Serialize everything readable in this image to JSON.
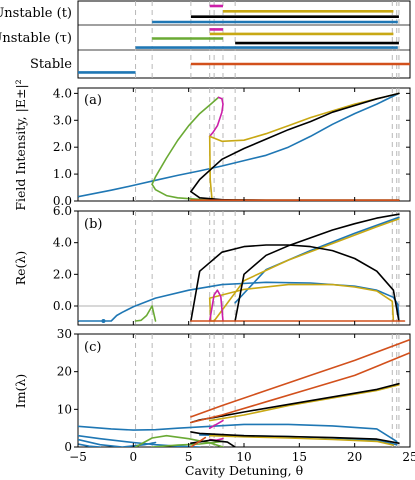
{
  "chart_data": {
    "type": "line",
    "x_tick_labels": [
      "−5",
      "0",
      "5",
      "10",
      "15",
      "20",
      "25"
    ],
    "xlabel": "Cavity Detuning, θ",
    "xlim": [
      -5,
      25
    ],
    "dashed_vlines_x": [
      0.2,
      1.7,
      5.2,
      6.9,
      7.3,
      8.1,
      9.2,
      23.4,
      23.8,
      24.0
    ],
    "colors": {
      "blue": "#1f77b4",
      "green": "#6aaa34",
      "yellow": "#c8a814",
      "black": "#000000",
      "orange": "#d2501c",
      "magenta": "#cc1fa9"
    },
    "stability": {
      "labels": [
        "Unstable (t)",
        "Unstable (τ)",
        "Stable"
      ],
      "bars": [
        {
          "row": "Unstable (t)",
          "color": "magenta",
          "from": 6.9,
          "to": 8.1
        },
        {
          "row": "Unstable (t)",
          "color": "yellow",
          "from": 8.1,
          "to": 23.5
        },
        {
          "row": "Unstable (t)",
          "color": "black",
          "from": 5.2,
          "to": 24.0
        },
        {
          "row": "Unstable (t)",
          "color": "blue",
          "from": 1.7,
          "to": 23.9
        },
        {
          "row": "Unstable (τ)",
          "color": "magenta",
          "from": 6.9,
          "to": 8.1
        },
        {
          "row": "Unstable (τ)",
          "color": "yellow",
          "from": 6.9,
          "to": 23.5
        },
        {
          "row": "Unstable (τ)",
          "color": "green",
          "from": 1.7,
          "to": 8.1
        },
        {
          "row": "Unstable (τ)",
          "color": "black",
          "from": 9.2,
          "to": 24.0
        },
        {
          "row": "Unstable (τ)",
          "color": "blue",
          "from": 0.2,
          "to": 23.9
        },
        {
          "row": "Stable",
          "color": "blue",
          "from": -5,
          "to": 0.2
        },
        {
          "row": "Stable",
          "color": "orange",
          "from": 5.2,
          "to": 25
        }
      ]
    },
    "panels": [
      {
        "label": "(a)",
        "ylabel": "Field Intensity, |E±|²",
        "ylim": [
          0,
          4.2
        ],
        "y_ticks": [
          0,
          1,
          2,
          3,
          4
        ],
        "y_tick_labels": [
          "0.0",
          "1.0",
          "2.0",
          "3.0",
          "4.0"
        ],
        "series": [
          {
            "color": "blue",
            "x": [
              -5,
              -2,
              0,
              2,
              4,
              6,
              8,
              10,
              12,
              14,
              16,
              18,
              20,
              22,
              24
            ],
            "y": [
              0.16,
              0.4,
              0.58,
              0.77,
              0.95,
              1.12,
              1.3,
              1.5,
              1.7,
              2.0,
              2.4,
              2.85,
              3.25,
              3.6,
              4.0
            ]
          },
          {
            "color": "green",
            "x": [
              1.7,
              2,
              3,
              4,
              5,
              6,
              7,
              7.7
            ],
            "y": [
              0.62,
              0.9,
              1.6,
              2.25,
              2.8,
              3.25,
              3.6,
              3.85
            ]
          },
          {
            "color": "green",
            "x": [
              1.7,
              2,
              3,
              4,
              6,
              8,
              10,
              12
            ],
            "y": [
              0.62,
              0.42,
              0.2,
              0.12,
              0.06,
              0.04,
              0.03,
              0.02
            ]
          },
          {
            "color": "magenta",
            "x": [
              6.9,
              7.2,
              7.6,
              8.0,
              8.1,
              8.0,
              7.7
            ],
            "y": [
              2.4,
              2.55,
              2.8,
              3.3,
              3.6,
              3.8,
              3.85
            ]
          },
          {
            "color": "yellow",
            "x": [
              6.9,
              8,
              10,
              12,
              14,
              16,
              18,
              20,
              22,
              24
            ],
            "y": [
              2.4,
              2.22,
              2.26,
              2.5,
              2.8,
              3.1,
              3.35,
              3.6,
              3.8,
              4.0
            ]
          },
          {
            "color": "yellow",
            "x": [
              6.9,
              6.95,
              7.1,
              7.5,
              10,
              14,
              18,
              22,
              24
            ],
            "y": [
              2.4,
              0.8,
              0.1,
              0.04,
              0.03,
              0.03,
              0.03,
              0.03,
              0.03
            ]
          },
          {
            "color": "black",
            "x": [
              5.2,
              6,
              8,
              10,
              12,
              14,
              16,
              18,
              20,
              22,
              24
            ],
            "y": [
              0.35,
              0.8,
              1.55,
              1.95,
              2.3,
              2.65,
              2.95,
              3.3,
              3.55,
              3.8,
              4.0
            ]
          },
          {
            "color": "black",
            "x": [
              5.2,
              6,
              8,
              9,
              12,
              16,
              20,
              24
            ],
            "y": [
              0.35,
              0.12,
              0.05,
              0.04,
              0.03,
              0.03,
              0.03,
              0.03
            ]
          },
          {
            "color": "orange",
            "x": [
              5.2,
              8,
              12,
              16,
              20,
              24
            ],
            "y": [
              0.03,
              0.03,
              0.03,
              0.03,
              0.03,
              0.03
            ]
          }
        ]
      },
      {
        "label": "(b)",
        "ylabel": "Re(λ)",
        "ylim": [
          -1.2,
          6.0
        ],
        "y_ticks": [
          0,
          2,
          4,
          6
        ],
        "y_tick_labels": [
          "0.0",
          "2.0",
          "4.0",
          "6.0"
        ],
        "zero_line": true,
        "series": [
          {
            "color": "blue",
            "x": [
              -5,
              -2.5,
              -2,
              -1.5,
              -1,
              0,
              2,
              5,
              8,
              12,
              16,
              20,
              22,
              23.5,
              23.9,
              24
            ],
            "y": [
              -0.95,
              -0.95,
              -0.95,
              -0.6,
              -0.4,
              -0.05,
              0.5,
              1.0,
              1.35,
              1.5,
              1.45,
              1.25,
              1.0,
              0.55,
              0.1,
              -0.95
            ]
          },
          {
            "color": "blue",
            "x": [
              9.2,
              12,
              16,
              20,
              24
            ],
            "y": [
              0.2,
              2.3,
              3.5,
              4.6,
              5.6
            ]
          },
          {
            "color": "green",
            "x": [
              0.2,
              0.7,
              1.2,
              1.7,
              2.0
            ],
            "y": [
              -0.95,
              -0.9,
              -0.6,
              0.0,
              -0.95
            ]
          },
          {
            "color": "yellow",
            "x": [
              6.9,
              10,
              14,
              18,
              20,
              22,
              23.4,
              23.5
            ],
            "y": [
              0.5,
              1.05,
              1.35,
              1.35,
              1.2,
              0.95,
              0.3,
              -0.95
            ]
          },
          {
            "color": "yellow",
            "x": [
              6.9,
              7.0,
              7.3
            ],
            "y": [
              0.5,
              -0.95,
              -0.95
            ]
          },
          {
            "color": "yellow",
            "x": [
              7.3,
              10,
              14,
              18,
              22,
              24
            ],
            "y": [
              -0.95,
              1.6,
              2.9,
              3.95,
              5.0,
              5.5
            ]
          },
          {
            "color": "magenta",
            "x": [
              6.9,
              7.3,
              7.6,
              7.9,
              8.1
            ],
            "y": [
              -0.95,
              0.7,
              1.0,
              0.6,
              -0.95
            ]
          },
          {
            "color": "black",
            "x": [
              5.2,
              6,
              8,
              10,
              12,
              14,
              16,
              18,
              20,
              22,
              23.5,
              24
            ],
            "y": [
              -0.95,
              2.2,
              3.4,
              3.75,
              3.85,
              3.85,
              3.75,
              3.5,
              3.0,
              2.2,
              1.0,
              -0.95
            ]
          },
          {
            "color": "black",
            "x": [
              9.2,
              10,
              12,
              14,
              16,
              18,
              20,
              22,
              24
            ],
            "y": [
              -0.95,
              2.0,
              3.2,
              3.8,
              4.3,
              4.8,
              5.2,
              5.55,
              5.8
            ]
          },
          {
            "color": "orange",
            "x": [
              5.2,
              24.5
            ],
            "y": [
              -0.95,
              -0.95
            ]
          }
        ],
        "markers": [
          {
            "color": "blue",
            "x": -2.7,
            "y": -0.95
          }
        ]
      },
      {
        "label": "(c)",
        "ylabel": "Im(λ)",
        "ylim": [
          0,
          30
        ],
        "y_ticks": [
          0,
          10,
          20,
          30
        ],
        "y_tick_labels": [
          "0",
          "10",
          "20",
          "30"
        ],
        "series": [
          {
            "color": "blue",
            "x": [
              -5,
              -2,
              0,
              2,
              4,
              7,
              10,
              14,
              18,
              22,
              23.8
            ],
            "y": [
              5.5,
              4.8,
              4.5,
              4.6,
              5.0,
              5.5,
              6.0,
              6.0,
              5.6,
              4.8,
              1.5
            ]
          },
          {
            "color": "blue",
            "x": [
              -5,
              -3,
              0,
              2,
              4,
              6
            ],
            "y": [
              3.0,
              2.2,
              1.2,
              0.6,
              0.2,
              0.0
            ]
          },
          {
            "color": "blue",
            "x": [
              -5,
              -3,
              -1,
              1,
              2
            ],
            "y": [
              2.0,
              0.6,
              0.0,
              0.6,
              1.2
            ]
          },
          {
            "color": "blue",
            "x": [
              -5,
              -4,
              -3
            ],
            "y": [
              0.8,
              0.2,
              0.0
            ]
          },
          {
            "color": "blue",
            "x": [
              6,
              10,
              14,
              18,
              22,
              23.8
            ],
            "y": [
              3.2,
              3.0,
              2.8,
              2.4,
              1.8,
              0.6
            ]
          },
          {
            "color": "green",
            "x": [
              0.2,
              1.7,
              3,
              5,
              7,
              8.1
            ],
            "y": [
              0.0,
              2.4,
              3.0,
              2.2,
              1.0,
              0.0
            ]
          },
          {
            "color": "green",
            "x": [
              1.7,
              4,
              6,
              8.1
            ],
            "y": [
              0.0,
              0.5,
              0.8,
              1.5
            ]
          },
          {
            "color": "yellow",
            "x": [
              6.9,
              10,
              14,
              18,
              22,
              24
            ],
            "y": [
              7.0,
              8.5,
              11.0,
              13.0,
              15.0,
              16.5
            ]
          },
          {
            "color": "yellow",
            "x": [
              6.9,
              10,
              14,
              18,
              22,
              23.5
            ],
            "y": [
              3.0,
              2.7,
              2.4,
              2.0,
              1.5,
              0.5
            ]
          },
          {
            "color": "magenta",
            "x": [
              6.9,
              7.5,
              8.1
            ],
            "y": [
              5.0,
              6.0,
              7.0
            ]
          },
          {
            "color": "magenta",
            "x": [
              6.9,
              7.5,
              8.1
            ],
            "y": [
              2.0,
              1.8,
              2.2
            ]
          },
          {
            "color": "black",
            "x": [
              5.2,
              6,
              8,
              10,
              14,
              18,
              22,
              24
            ],
            "y": [
              6.5,
              7.2,
              8.2,
              9.3,
              11.3,
              13.3,
              15.3,
              16.8
            ]
          },
          {
            "color": "black",
            "x": [
              5.2,
              6,
              8,
              10,
              14,
              18,
              22,
              24
            ],
            "y": [
              4.0,
              3.6,
              3.3,
              3.0,
              2.8,
              2.5,
              2.1,
              1.0
            ]
          },
          {
            "color": "black",
            "x": [
              5.2,
              7,
              8.5,
              9.2
            ],
            "y": [
              1.0,
              1.8,
              1.3,
              0.0
            ]
          },
          {
            "color": "orange",
            "x": [
              5.2,
              8,
              12,
              16,
              20,
              25
            ],
            "y": [
              8.0,
              11.0,
              15.0,
              19.0,
              23.0,
              28.5
            ]
          },
          {
            "color": "orange",
            "x": [
              5.2,
              8,
              12,
              16,
              20,
              25
            ],
            "y": [
              6.5,
              8.5,
              12.0,
              15.5,
              19.0,
              25.0
            ]
          },
          {
            "color": "orange",
            "x": [
              5.2,
              6.5
            ],
            "y": [
              0.0,
              2.5
            ]
          }
        ]
      }
    ]
  }
}
